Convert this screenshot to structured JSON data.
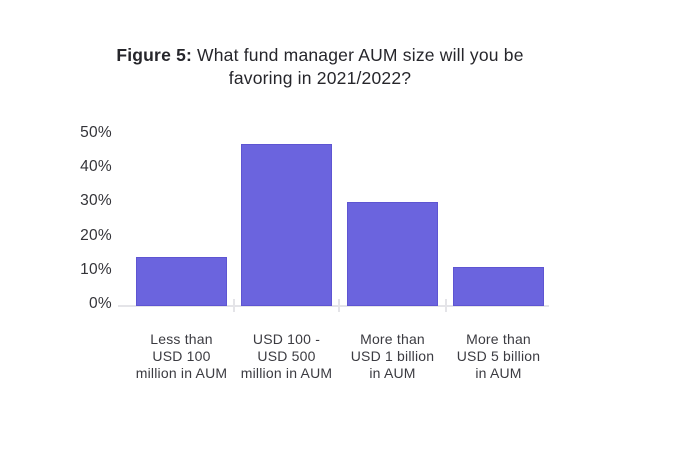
{
  "figure": {
    "title_prefix": "Figure 5:",
    "title_line1_rest": "What fund manager AUM size will you be",
    "title_line2": "favoring in 2021/2022?"
  },
  "chart_data": {
    "type": "bar",
    "title": "Figure 5: What fund manager AUM size will you be favoring in 2021/2022?",
    "categories": [
      "Less than\nUSD 100\nmillion in AUM",
      "USD 100 -\nUSD 500\nmillion in AUM",
      "More than\nUSD 1 billion\nin AUM",
      "More than\nUSD 5 billion\nin AUM"
    ],
    "values": [
      14,
      47,
      30,
      11
    ],
    "unit": "%",
    "xlabel": "",
    "ylabel": "",
    "ylim": [
      0,
      50
    ],
    "y_tick_step": 10,
    "y_tick_labels": [
      "0%",
      "10%",
      "20%",
      "30%",
      "40%",
      "50%"
    ],
    "grid": false,
    "legend": "none",
    "colors": {
      "bar_fill": "#6b64de",
      "bar_border": "#5e55d2",
      "axis_line": "#e4e4e8",
      "title_text": "#26262b",
      "label_text": "#3b3b41"
    }
  }
}
